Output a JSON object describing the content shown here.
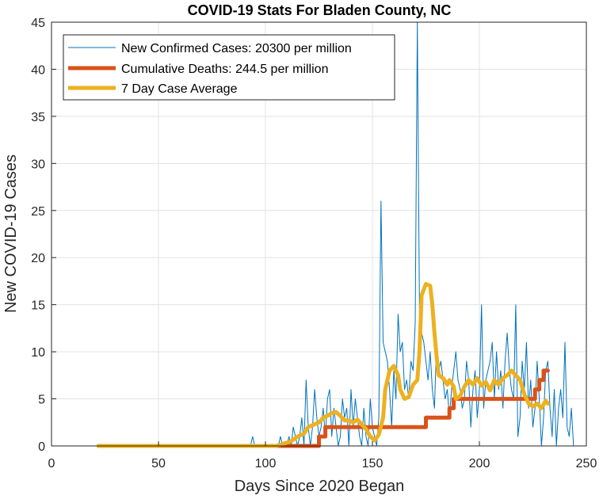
{
  "chart_data": {
    "type": "line",
    "title": "COVID-19 Stats For Bladen County, NC",
    "xlabel": "Days Since 2020 Began",
    "ylabel": "New COVID-19 Cases",
    "xlim": [
      0,
      250
    ],
    "ylim": [
      0,
      45
    ],
    "xticks": [
      0,
      50,
      100,
      150,
      200,
      250
    ],
    "yticks": [
      0,
      5,
      10,
      15,
      20,
      25,
      30,
      35,
      40,
      45
    ],
    "grid": true,
    "legend_position": "top-left",
    "series": [
      {
        "name": "New Confirmed Cases: 20300 per million",
        "color": "#0072BD",
        "style": "thin",
        "x_start": 22,
        "values": [
          0,
          0,
          0,
          0,
          0,
          0,
          0,
          0,
          0,
          0,
          0,
          0,
          0,
          0,
          0,
          0,
          0,
          0,
          0,
          0,
          0,
          0,
          0,
          0,
          0,
          0,
          0,
          0,
          0,
          0,
          0,
          0,
          0,
          0,
          0,
          0,
          0,
          0,
          0,
          0,
          0,
          0,
          0,
          0,
          0,
          0,
          0,
          0,
          0,
          0,
          0,
          0,
          0,
          0,
          0,
          0,
          0,
          0,
          0,
          0,
          0,
          0,
          0,
          0,
          0,
          0,
          0,
          0,
          0,
          0,
          0,
          0,
          1,
          0,
          0,
          0,
          0,
          0,
          0,
          0,
          0,
          0,
          0,
          0,
          0,
          1,
          0,
          0,
          0,
          1,
          0,
          2,
          1,
          0,
          1,
          3,
          0,
          7,
          2,
          0,
          2,
          6,
          3,
          1,
          2,
          4,
          1,
          5,
          6,
          1,
          4,
          2,
          0,
          1,
          5,
          3,
          4,
          0,
          6,
          2,
          5,
          3,
          1,
          0,
          4,
          1,
          0,
          5,
          2,
          1,
          0,
          3,
          26,
          11,
          10,
          9,
          6,
          2,
          8,
          5,
          14,
          10,
          11,
          6,
          7,
          5,
          9,
          8,
          13,
          45,
          14,
          12,
          11,
          9,
          7,
          10,
          6,
          4,
          11,
          8,
          9,
          7,
          5,
          6,
          3,
          6,
          8,
          10,
          7,
          6,
          4,
          5,
          9,
          7,
          2,
          6,
          8,
          3,
          6,
          15,
          4,
          7,
          8,
          9,
          11,
          5,
          10,
          6,
          8,
          4,
          9,
          12,
          8,
          6,
          5,
          15,
          1,
          3,
          9,
          6,
          11,
          4,
          7,
          2,
          4,
          9,
          5,
          0,
          3,
          8,
          9,
          4,
          1,
          6,
          0,
          4,
          6,
          3,
          11,
          2,
          1,
          4,
          0
        ],
        "note": "daily values, one per day starting at x_start"
      },
      {
        "name": "Cumulative Deaths: 244.5 per million",
        "color": "#D95319",
        "style": "thick",
        "points": [
          [
            22,
            0
          ],
          [
            125,
            0
          ],
          [
            125,
            1
          ],
          [
            128,
            1
          ],
          [
            128,
            2
          ],
          [
            140,
            2
          ],
          [
            140,
            2
          ],
          [
            172,
            2
          ],
          [
            172,
            2
          ],
          [
            175,
            2
          ],
          [
            175,
            3
          ],
          [
            186,
            3
          ],
          [
            186,
            4
          ],
          [
            188,
            4
          ],
          [
            188,
            5
          ],
          [
            226,
            5
          ],
          [
            226,
            6
          ],
          [
            228,
            6
          ],
          [
            228,
            7
          ],
          [
            230,
            7
          ],
          [
            230,
            8
          ],
          [
            232,
            8
          ]
        ]
      },
      {
        "name": "7 Day Case Average",
        "color": "#EDB120",
        "style": "thick",
        "points": [
          [
            22,
            0
          ],
          [
            100,
            0
          ],
          [
            105,
            0
          ],
          [
            108,
            0.2
          ],
          [
            112,
            0.5
          ],
          [
            115,
            1
          ],
          [
            118,
            1.3
          ],
          [
            120,
            2
          ],
          [
            123,
            2.3
          ],
          [
            125,
            2.5
          ],
          [
            127,
            3
          ],
          [
            129,
            3.2
          ],
          [
            131,
            3.5
          ],
          [
            133,
            3.6
          ],
          [
            135,
            3.2
          ],
          [
            137,
            2.7
          ],
          [
            139,
            2.7
          ],
          [
            141,
            2.5
          ],
          [
            143,
            2.8
          ],
          [
            145,
            2.3
          ],
          [
            147,
            1.8
          ],
          [
            149,
            1
          ],
          [
            151,
            0.6
          ],
          [
            153,
            1.2
          ],
          [
            155,
            3
          ],
          [
            156,
            6
          ],
          [
            158,
            8
          ],
          [
            160,
            8.5
          ],
          [
            162,
            7.5
          ],
          [
            163,
            6
          ],
          [
            165,
            5
          ],
          [
            167,
            5.2
          ],
          [
            169,
            6.5
          ],
          [
            171,
            7
          ],
          [
            172,
            10
          ],
          [
            173,
            16
          ],
          [
            175,
            17.2
          ],
          [
            177,
            17
          ],
          [
            178,
            15
          ],
          [
            179,
            12
          ],
          [
            180,
            9.5
          ],
          [
            181,
            7.5
          ],
          [
            183,
            7.2
          ],
          [
            185,
            6.5
          ],
          [
            186,
            7
          ],
          [
            188,
            6.3
          ],
          [
            189,
            5
          ],
          [
            191,
            5.3
          ],
          [
            193,
            6.3
          ],
          [
            195,
            7
          ],
          [
            197,
            6.5
          ],
          [
            199,
            7.2
          ],
          [
            201,
            6.4
          ],
          [
            203,
            6.8
          ],
          [
            205,
            5.9
          ],
          [
            207,
            7
          ],
          [
            209,
            6.5
          ],
          [
            211,
            7.2
          ],
          [
            213,
            7.5
          ],
          [
            215,
            8
          ],
          [
            217,
            7.5
          ],
          [
            219,
            7
          ],
          [
            221,
            5.5
          ],
          [
            223,
            4.5
          ],
          [
            225,
            4.2
          ],
          [
            227,
            4.5
          ],
          [
            229,
            4
          ],
          [
            231,
            4.8
          ],
          [
            232,
            4.5
          ]
        ]
      }
    ]
  },
  "legend": {
    "items": [
      "New Confirmed Cases: 20300 per million",
      "Cumulative Deaths: 244.5 per million",
      "7 Day Case Average"
    ]
  }
}
